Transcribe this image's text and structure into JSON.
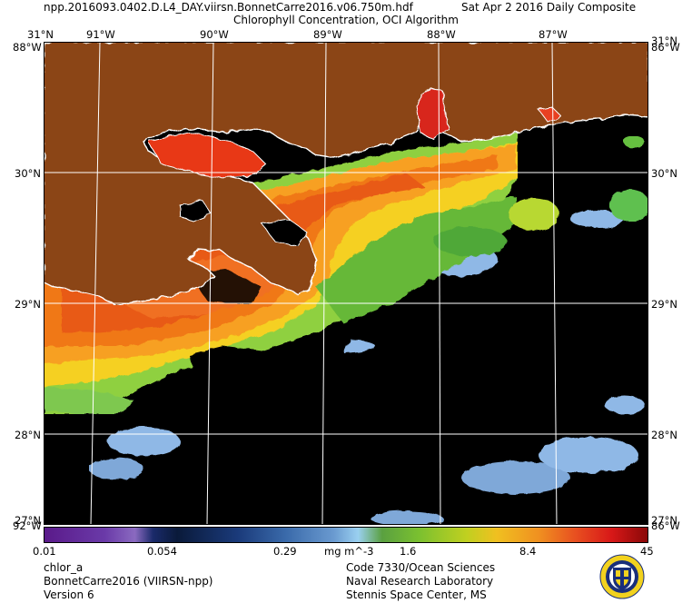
{
  "header": {
    "filename": "npp.2016093.0402.D.L4_DAY.viirsn.BonnetCarre2016.v06.750m.hdf",
    "date": "Sat Apr  2 2016 Daily Composite",
    "product": "Chlorophyll Concentration, OCI Algorithm"
  },
  "map": {
    "top_lon_labels": [
      "91°W",
      "90°W",
      "89°W",
      "88°W",
      "87°W"
    ],
    "left_lat_labels": [
      "31°N",
      "30°N",
      "29°N",
      "28°N",
      "27°N"
    ],
    "right_lat_labels": [
      "31°N",
      "30°N",
      "29°N",
      "28°N",
      "27°N"
    ],
    "corner_top_left": "88°W",
    "corner_top_right": "86°W",
    "corner_bottom_left": "92°W",
    "corner_bottom_right": "86°W",
    "colors": {
      "land": "#8b4513",
      "nodata": "#000000",
      "coast": "#ffffff",
      "grid": "#ffffff"
    }
  },
  "colorbar": {
    "ticks": [
      "0.01",
      "0.054",
      "0.29",
      "1.6",
      "8.4",
      "45"
    ],
    "unit": "mg m^-3"
  },
  "footer": {
    "variable": "chlor_a",
    "dataset": "BonnetCarre2016 (VIIRSN-npp)",
    "version": "Version 6",
    "org_line1": "Code 7330/Ocean Sciences",
    "org_line2": "Naval Research Laboratory",
    "org_line3": "Stennis Space Center, MS"
  }
}
